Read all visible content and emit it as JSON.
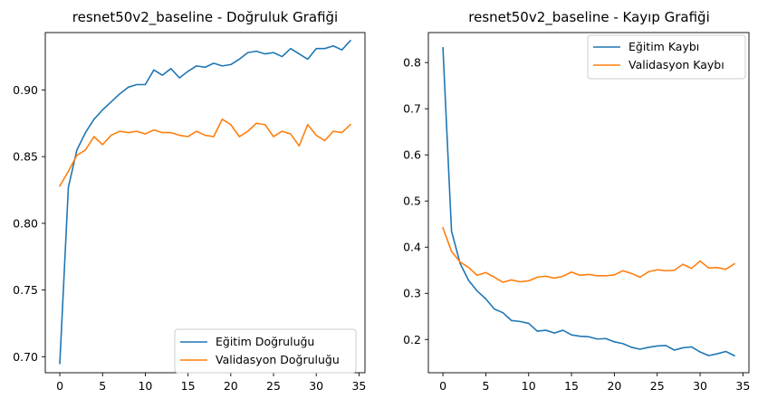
{
  "colors": {
    "series1": "#1f77b4",
    "series2": "#ff7f0e"
  },
  "chart_data": [
    {
      "type": "line",
      "title": "resnet50v2_baseline - Doğruluk Grafiği",
      "xlabel": "",
      "ylabel": "",
      "xlim": [
        -1.7,
        35.7
      ],
      "ylim": [
        0.688,
        0.943
      ],
      "xticks": [
        0,
        5,
        10,
        15,
        20,
        25,
        30,
        35
      ],
      "xtick_labels": [
        "0",
        "5",
        "10",
        "15",
        "20",
        "25",
        "30",
        "35"
      ],
      "yticks": [
        0.7,
        0.75,
        0.8,
        0.85,
        0.9
      ],
      "ytick_labels": [
        "0.70",
        "0.75",
        "0.80",
        "0.85",
        "0.90"
      ],
      "legend_position": "lower-right",
      "grid": false,
      "x": [
        0,
        1,
        2,
        3,
        4,
        5,
        6,
        7,
        8,
        9,
        10,
        11,
        12,
        13,
        14,
        15,
        16,
        17,
        18,
        19,
        20,
        21,
        22,
        23,
        24,
        25,
        26,
        27,
        28,
        29,
        30,
        31,
        32,
        33,
        34
      ],
      "series": [
        {
          "name": "Eğitim Doğruluğu",
          "color": "#1f77b4",
          "values": [
            0.695,
            0.827,
            0.855,
            0.868,
            0.878,
            0.885,
            0.891,
            0.897,
            0.902,
            0.904,
            0.904,
            0.915,
            0.911,
            0.916,
            0.909,
            0.914,
            0.918,
            0.917,
            0.92,
            0.918,
            0.919,
            0.923,
            0.928,
            0.929,
            0.927,
            0.928,
            0.925,
            0.931,
            0.927,
            0.923,
            0.931,
            0.931,
            0.933,
            0.93,
            0.937
          ]
        },
        {
          "name": "Validasyon Doğruluğu",
          "color": "#ff7f0e",
          "values": [
            0.828,
            0.839,
            0.851,
            0.855,
            0.865,
            0.859,
            0.866,
            0.869,
            0.868,
            0.869,
            0.867,
            0.87,
            0.868,
            0.868,
            0.866,
            0.865,
            0.869,
            0.866,
            0.865,
            0.878,
            0.874,
            0.865,
            0.869,
            0.875,
            0.874,
            0.865,
            0.869,
            0.867,
            0.858,
            0.874,
            0.866,
            0.862,
            0.869,
            0.868,
            0.874
          ]
        }
      ]
    },
    {
      "type": "line",
      "title": "resnet50v2_baseline - Kayıp Grafiği",
      "xlabel": "",
      "ylabel": "",
      "xlim": [
        -1.7,
        35.7
      ],
      "ylim": [
        0.128,
        0.865
      ],
      "xticks": [
        0,
        5,
        10,
        15,
        20,
        25,
        30,
        35
      ],
      "xtick_labels": [
        "0",
        "5",
        "10",
        "15",
        "20",
        "25",
        "30",
        "35"
      ],
      "yticks": [
        0.2,
        0.3,
        0.4,
        0.5,
        0.6,
        0.7,
        0.8
      ],
      "ytick_labels": [
        "0.2",
        "0.3",
        "0.4",
        "0.5",
        "0.6",
        "0.7",
        "0.8"
      ],
      "legend_position": "upper-right",
      "grid": false,
      "x": [
        0,
        1,
        2,
        3,
        4,
        5,
        6,
        7,
        8,
        9,
        10,
        11,
        12,
        13,
        14,
        15,
        16,
        17,
        18,
        19,
        20,
        21,
        22,
        23,
        24,
        25,
        26,
        27,
        28,
        29,
        30,
        31,
        32,
        33,
        34
      ],
      "series": [
        {
          "name": "Eğitim Kaybı",
          "color": "#1f77b4",
          "values": [
            0.832,
            0.435,
            0.365,
            0.328,
            0.305,
            0.288,
            0.266,
            0.258,
            0.241,
            0.239,
            0.235,
            0.218,
            0.22,
            0.214,
            0.22,
            0.21,
            0.207,
            0.206,
            0.201,
            0.202,
            0.195,
            0.191,
            0.183,
            0.179,
            0.183,
            0.186,
            0.187,
            0.177,
            0.182,
            0.184,
            0.173,
            0.165,
            0.169,
            0.174,
            0.165
          ]
        },
        {
          "name": "Validasyon Kaybı",
          "color": "#ff7f0e",
          "values": [
            0.442,
            0.391,
            0.368,
            0.356,
            0.339,
            0.345,
            0.335,
            0.324,
            0.329,
            0.325,
            0.327,
            0.335,
            0.337,
            0.333,
            0.337,
            0.346,
            0.339,
            0.341,
            0.338,
            0.338,
            0.34,
            0.349,
            0.343,
            0.335,
            0.347,
            0.351,
            0.349,
            0.35,
            0.363,
            0.354,
            0.37,
            0.355,
            0.356,
            0.352,
            0.364
          ]
        }
      ]
    }
  ]
}
